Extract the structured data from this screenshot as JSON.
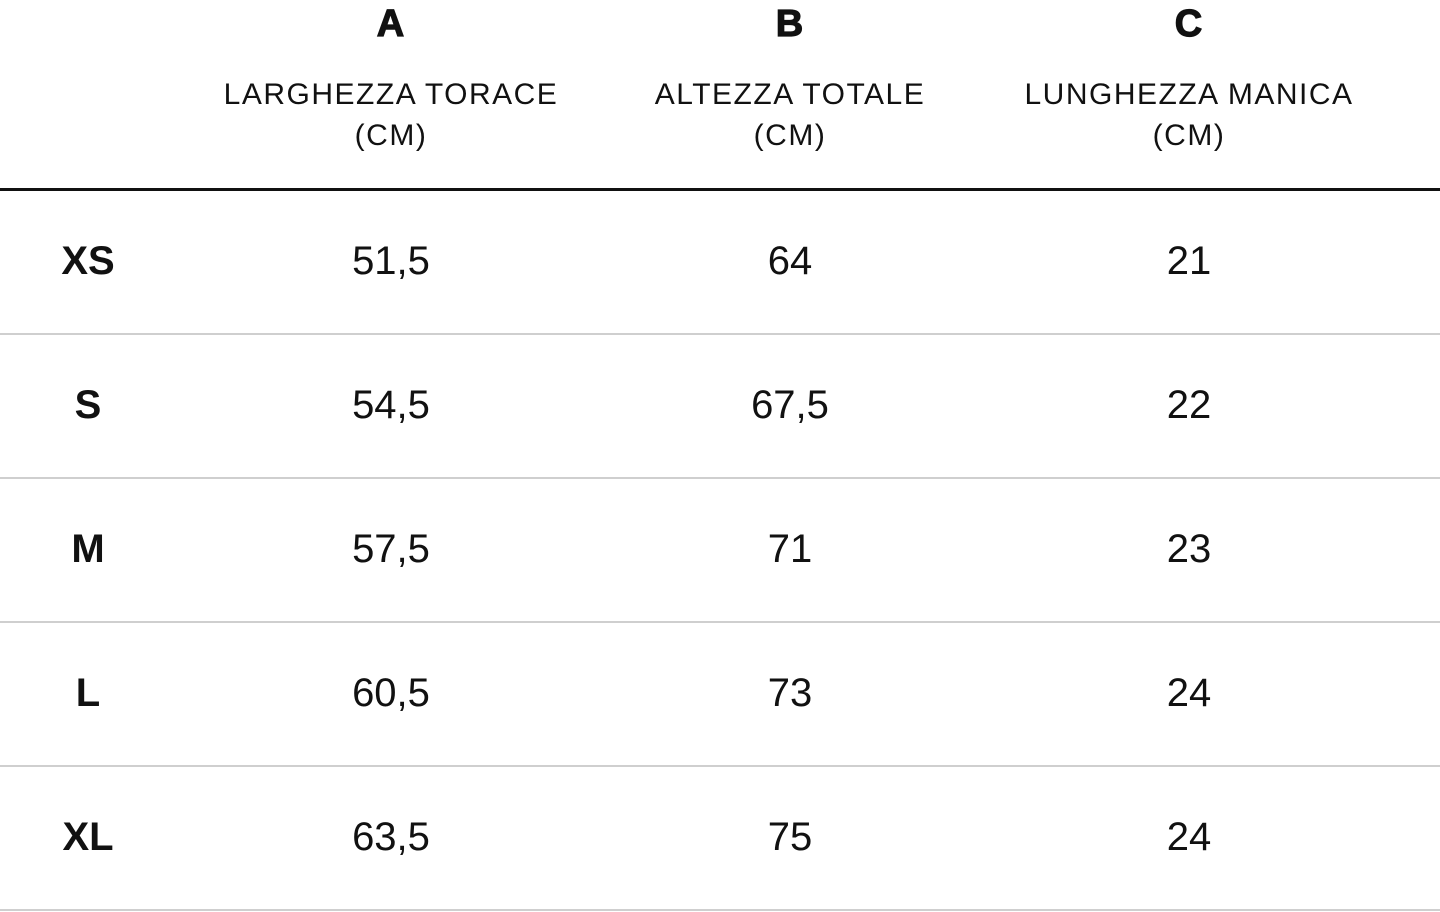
{
  "columns": [
    {
      "letter": "A",
      "title_line1": "LARGHEZZA TORACE",
      "title_line2": "(CM)"
    },
    {
      "letter": "B",
      "title_line1": "ALTEZZA TOTALE",
      "title_line2": "(CM)"
    },
    {
      "letter": "C",
      "title_line1": "LUNGHEZZA MANICA",
      "title_line2": "(CM)"
    }
  ],
  "rows": [
    {
      "size": "XS",
      "a": "51,5",
      "b": "64",
      "c": "21"
    },
    {
      "size": "S",
      "a": "54,5",
      "b": "67,5",
      "c": "22"
    },
    {
      "size": "M",
      "a": "57,5",
      "b": "71",
      "c": "23"
    },
    {
      "size": "L",
      "a": "60,5",
      "b": "73",
      "c": "24"
    },
    {
      "size": "XL",
      "a": "63,5",
      "b": "75",
      "c": "24"
    }
  ],
  "colors": {
    "text": "#111111",
    "header_rule": "#111111",
    "row_rule": "#cfcfcf",
    "background": "#ffffff"
  }
}
